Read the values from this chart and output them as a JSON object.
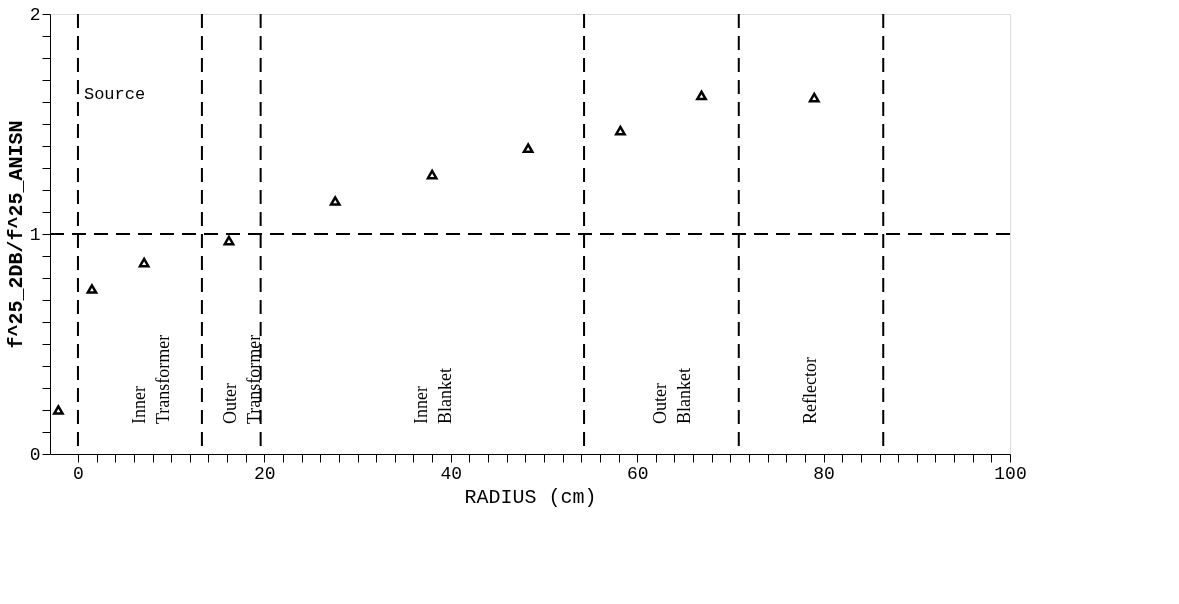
{
  "chart_data": {
    "type": "scatter",
    "xlabel": "RADIUS (cm)",
    "ylabel": "f^25_2DB/f^25_ANISN",
    "x": [
      -2.1,
      1.5,
      7.1,
      16.2,
      27.6,
      38.0,
      48.3,
      58.2,
      66.9,
      79.0
    ],
    "series": [
      {
        "color": "#000000",
        "values": [
          0.2,
          0.75,
          0.87,
          0.97,
          1.15,
          1.27,
          1.39,
          1.47,
          1.63,
          1.62
        ]
      }
    ],
    "marker": "triangle",
    "xlim": [
      -3,
      100
    ],
    "ylim": [
      0,
      2
    ],
    "xticks": [
      0,
      {
        "value": 2,
        "label": null
      },
      {
        "value": 4,
        "label": null
      },
      {
        "value": 6,
        "label": null
      },
      {
        "value": 8,
        "label": null
      },
      {
        "value": 10,
        "label": null
      },
      {
        "value": 12,
        "label": null
      },
      {
        "value": 14,
        "label": null
      },
      {
        "value": 16,
        "label": null
      },
      {
        "value": 18,
        "label": null
      },
      20,
      {
        "value": 22,
        "label": null
      },
      {
        "value": 24,
        "label": null
      },
      {
        "value": 26,
        "label": null
      },
      {
        "value": 28,
        "label": null
      },
      {
        "value": 30,
        "label": null
      },
      {
        "value": 32,
        "label": null
      },
      {
        "value": 34,
        "label": null
      },
      {
        "value": 36,
        "label": null
      },
      {
        "value": 38,
        "label": null
      },
      40,
      {
        "value": 42,
        "label": null
      },
      {
        "value": 44,
        "label": null
      },
      {
        "value": 46,
        "label": null
      },
      {
        "value": 48,
        "label": null
      },
      {
        "value": 50,
        "label": null
      },
      {
        "value": 52,
        "label": null
      },
      {
        "value": 54,
        "label": null
      },
      {
        "value": 56,
        "label": null
      },
      {
        "value": 58,
        "label": null
      },
      60,
      {
        "value": 62,
        "label": null
      },
      {
        "value": 64,
        "label": null
      },
      {
        "value": 66,
        "label": null
      },
      {
        "value": 68,
        "label": null
      },
      {
        "value": 70,
        "label": null
      },
      {
        "value": 72,
        "label": null
      },
      {
        "value": 74,
        "label": null
      },
      {
        "value": 76,
        "label": null
      },
      {
        "value": 78,
        "label": null
      },
      80,
      {
        "value": 82,
        "label": null
      },
      {
        "value": 84,
        "label": null
      },
      {
        "value": 86,
        "label": null
      },
      {
        "value": 88,
        "label": null
      },
      {
        "value": 90,
        "label": null
      },
      {
        "value": 92,
        "label": null
      },
      {
        "value": 94,
        "label": null
      },
      {
        "value": 96,
        "label": null
      },
      {
        "value": 98,
        "label": null
      },
      100
    ],
    "yticks": [
      0,
      {
        "value": 0.1,
        "label": null
      },
      {
        "value": 0.2,
        "label": null
      },
      {
        "value": 0.3,
        "label": null
      },
      {
        "value": 0.4,
        "label": null
      },
      {
        "value": 0.5,
        "label": null
      },
      {
        "value": 0.6,
        "label": null
      },
      {
        "value": 0.7,
        "label": null
      },
      {
        "value": 0.8,
        "label": null
      },
      {
        "value": 0.9,
        "label": null
      },
      1,
      {
        "value": 1.1,
        "label": null
      },
      {
        "value": 1.2,
        "label": null
      },
      {
        "value": 1.3,
        "label": null
      },
      {
        "value": 1.4,
        "label": null
      },
      {
        "value": 1.5,
        "label": null
      },
      {
        "value": 1.6,
        "label": null
      },
      {
        "value": 1.7,
        "label": null
      },
      {
        "value": 1.8,
        "label": null
      },
      {
        "value": 1.9,
        "label": null
      },
      2
    ],
    "ref_lines": [
      {
        "axis": "y",
        "value": 1,
        "line_style": "dashed"
      },
      {
        "axis": "x",
        "value": 0,
        "line_style": "dashed"
      },
      {
        "axis": "x",
        "value": 13.3,
        "line_style": "dashed"
      },
      {
        "axis": "x",
        "value": 19.6,
        "line_style": "dashed"
      },
      {
        "axis": "x",
        "value": 54.3,
        "line_style": "dashed"
      },
      {
        "axis": "x",
        "value": 70.9,
        "line_style": "dashed"
      },
      {
        "axis": "x",
        "value": 86.4,
        "line_style": "dashed"
      }
    ],
    "annotations": [
      "Source",
      "Inner Transformer",
      "Outer Transformer",
      "Inner Blanket",
      "Outer Blanket",
      "Reflector"
    ],
    "grid": false
  }
}
